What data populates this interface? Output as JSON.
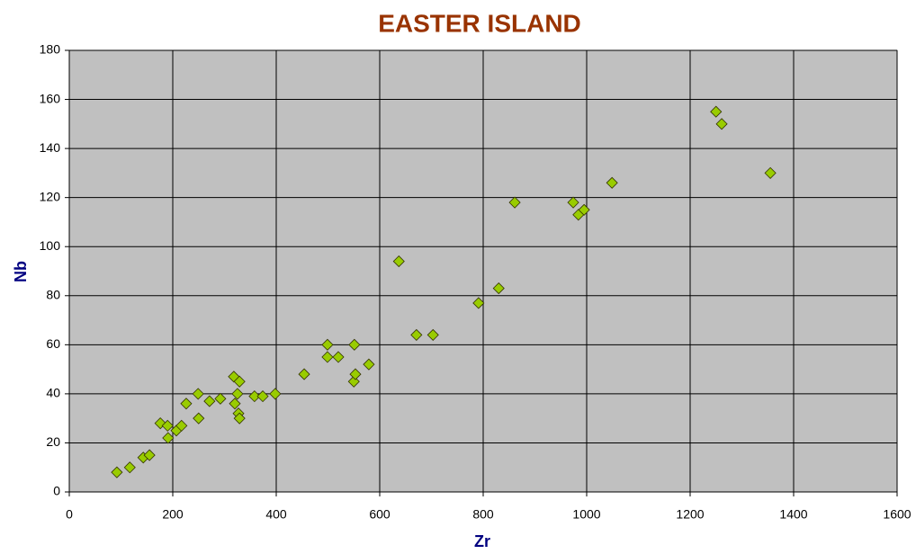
{
  "chart_data": {
    "type": "scatter",
    "title": "EASTER ISLAND",
    "x_label": "Zr",
    "y_label": "Nb",
    "x": [
      92,
      117,
      143,
      155,
      176,
      190,
      191,
      207,
      217,
      226,
      249,
      250,
      271,
      292,
      318,
      320,
      325,
      329,
      327,
      329,
      358,
      374,
      398,
      454,
      499,
      499,
      520,
      551,
      550,
      553,
      579,
      637,
      671,
      703,
      791,
      830,
      861,
      974,
      984,
      995,
      1049,
      1250,
      1261,
      1355
    ],
    "y": [
      8,
      10,
      14,
      15,
      28,
      27,
      22,
      25,
      27,
      36,
      40,
      30,
      37,
      38,
      47,
      36,
      40,
      45,
      32,
      30,
      39,
      39,
      40,
      48,
      60,
      55,
      55,
      60,
      45,
      48,
      52,
      94,
      64,
      64,
      77,
      83,
      118,
      118,
      113,
      115,
      126,
      155,
      150,
      130
    ],
    "color": "#99cc00",
    "xlim": [
      0,
      1600
    ],
    "xticks": [
      0,
      200,
      400,
      600,
      800,
      1000,
      1200,
      1400,
      1600
    ],
    "ylim": [
      0,
      180
    ],
    "yticks": [
      0,
      20,
      40,
      60,
      80,
      100,
      120,
      140,
      160,
      180
    ],
    "grid": true
  }
}
